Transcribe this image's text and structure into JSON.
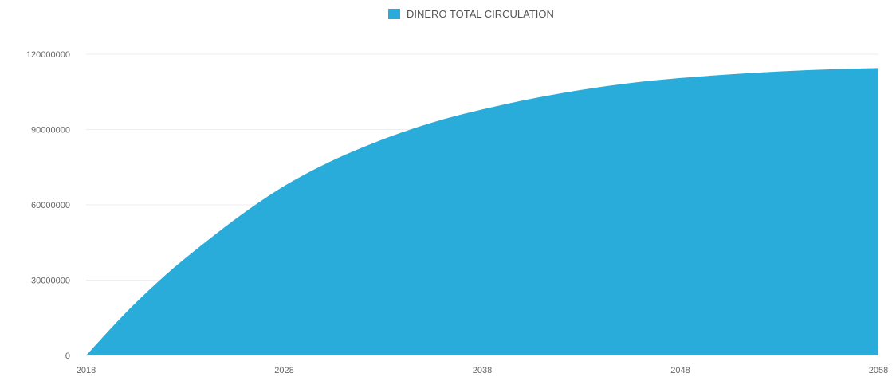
{
  "chart_data": {
    "type": "area",
    "title": "",
    "xlabel": "",
    "ylabel": "",
    "legend": {
      "position": "top-center",
      "entries": [
        {
          "label": "DINERO TOTAL CIRCULATION",
          "color": "#29acd9"
        }
      ]
    },
    "x_ticks": [
      "2018",
      "2028",
      "2038",
      "2048",
      "2058"
    ],
    "y_ticks": [
      "0",
      "30000000",
      "60000000",
      "90000000",
      "120000000"
    ],
    "xlim": [
      2018,
      2058
    ],
    "ylim": [
      0,
      120000000
    ],
    "grid": {
      "horizontal": true,
      "vertical": false
    },
    "series": [
      {
        "name": "DINERO TOTAL CIRCULATION",
        "color": "#29acd9",
        "x": [
          2018,
          2020,
          2022,
          2024,
          2026,
          2028,
          2030,
          2032,
          2034,
          2036,
          2038,
          2040,
          2042,
          2044,
          2046,
          2048,
          2050,
          2052,
          2054,
          2056,
          2058
        ],
        "values": [
          0,
          17000000,
          32000000,
          45000000,
          57000000,
          67500000,
          76000000,
          83000000,
          89000000,
          94000000,
          98000000,
          101500000,
          104500000,
          107000000,
          109000000,
          110500000,
          111700000,
          112700000,
          113500000,
          114100000,
          114500000
        ]
      }
    ]
  }
}
